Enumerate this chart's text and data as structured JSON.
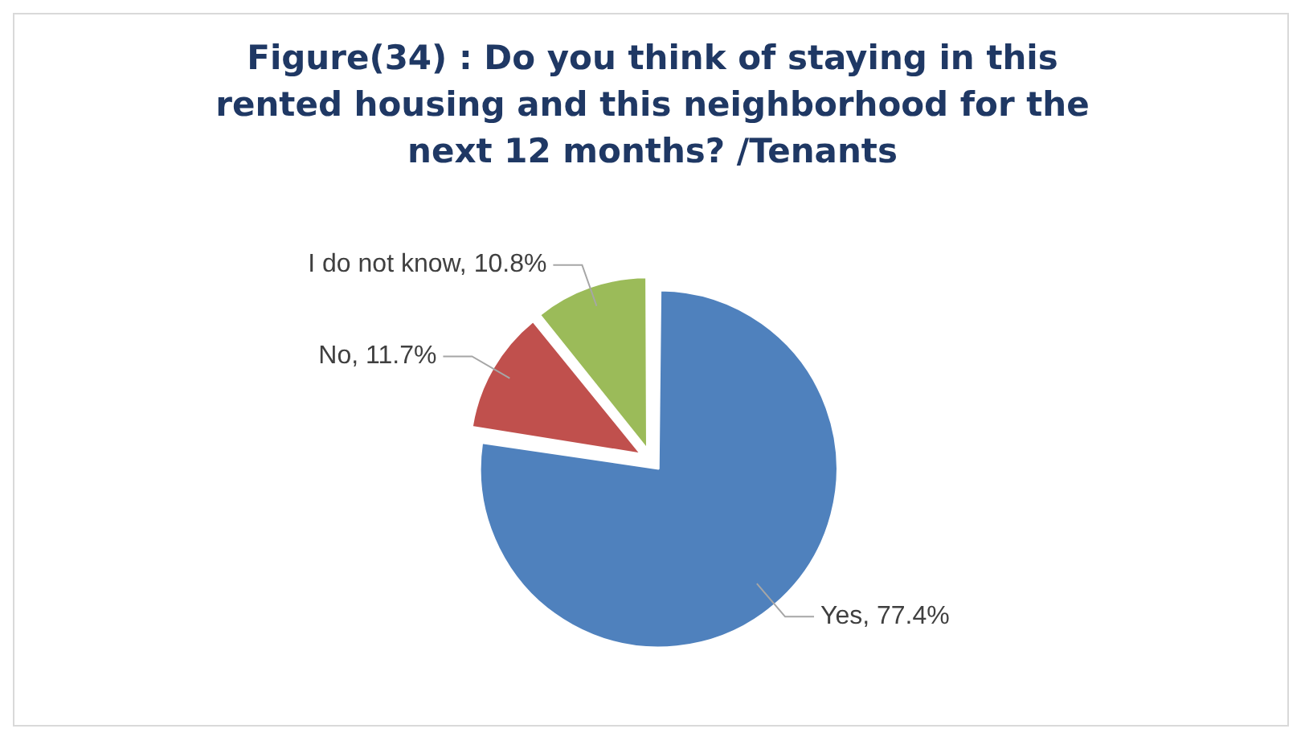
{
  "chart_data": {
    "type": "pie",
    "title": "Figure(34) : Do you think of staying in this rented housing and this neighborhood for the next 12 months? /Tenants",
    "categories": [
      "Yes",
      "No",
      "I do not know"
    ],
    "values": [
      77.4,
      11.7,
      10.8
    ],
    "colors": [
      "#4f81bd",
      "#c0504d",
      "#9bbb59"
    ],
    "value_labels": [
      "77.4%",
      "11.7%",
      "10.8%"
    ],
    "legend": false
  }
}
